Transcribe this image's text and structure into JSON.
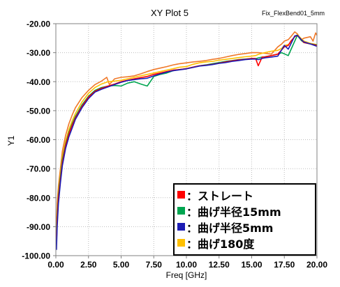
{
  "chart_data": {
    "type": "line",
    "title": "XY Plot 5",
    "subtitle": "Fix_FlexBend01_5mm",
    "xlabel": "Freq [GHz]",
    "ylabel": "Y1",
    "xlim": [
      0,
      20
    ],
    "ylim": [
      -100,
      -20
    ],
    "xticks": [
      "0.00",
      "2.50",
      "5.00",
      "7.50",
      "10.00",
      "12.50",
      "15.00",
      "17.50",
      "20.00"
    ],
    "yticks": [
      "-20.00",
      "-30.00",
      "-40.00",
      "-50.00",
      "-60.00",
      "-70.00",
      "-80.00",
      "-90.00",
      "-100.00"
    ],
    "grid": true,
    "legend_position": "bottom-right",
    "series": [
      {
        "name": "：ストレート",
        "color": "#ff0000",
        "x": [
          0.05,
          0.1,
          0.2,
          0.35,
          0.5,
          0.75,
          1,
          1.25,
          1.5,
          2,
          2.5,
          3,
          3.5,
          4,
          4.5,
          5,
          5.5,
          6,
          6.5,
          7,
          7.5,
          8,
          8.5,
          9,
          9.5,
          10,
          10.5,
          11,
          11.5,
          12,
          12.5,
          13,
          13.5,
          14,
          14.5,
          15,
          15.3,
          15.5,
          15.8,
          16,
          16.5,
          17,
          17.3,
          17.5,
          17.8,
          18,
          18.3,
          18.5,
          18.8,
          19,
          19.5,
          20
        ],
        "y": [
          -96,
          -88,
          -80,
          -74,
          -68,
          -62,
          -58,
          -55,
          -52.5,
          -48.5,
          -45.3,
          -43.3,
          -42.3,
          -41.5,
          -40.8,
          -40,
          -39.5,
          -39,
          -38.6,
          -38.2,
          -37.5,
          -37,
          -36.5,
          -36,
          -35.8,
          -35.5,
          -35,
          -34.5,
          -34.3,
          -34,
          -33.6,
          -33.2,
          -32.8,
          -32.5,
          -32.3,
          -32,
          -32,
          -34.5,
          -31.5,
          -31.5,
          -31,
          -30.5,
          -29,
          -28,
          -27.5,
          -26,
          -24.5,
          -24,
          -25.5,
          -26.5,
          -27,
          -27.5
        ]
      },
      {
        "name": "：曲げ半径15mm",
        "color": "#00a550",
        "x": [
          0.05,
          0.1,
          0.2,
          0.35,
          0.5,
          0.75,
          1,
          1.25,
          1.5,
          2,
          2.5,
          3,
          3.5,
          4,
          4.5,
          5,
          5.5,
          6,
          6.5,
          7,
          7.5,
          8,
          8.5,
          9,
          9.5,
          10,
          10.5,
          11,
          11.5,
          12,
          12.5,
          13,
          13.5,
          14,
          14.5,
          15,
          15.3,
          15.5,
          15.8,
          16,
          16.5,
          17,
          17.3,
          17.5,
          17.8,
          18,
          18.3,
          18.5,
          18.8,
          19,
          19.5,
          20
        ],
        "y": [
          -95,
          -87,
          -79,
          -73,
          -67,
          -61.5,
          -57.5,
          -54.5,
          -52,
          -48,
          -45,
          -43,
          -42,
          -41.5,
          -41.3,
          -41.5,
          -40.5,
          -40,
          -40.8,
          -41.5,
          -38.2,
          -37.5,
          -37,
          -36.2,
          -35.8,
          -35.5,
          -35,
          -34.5,
          -34.2,
          -33.8,
          -33.4,
          -33,
          -32.7,
          -32.4,
          -32.2,
          -32,
          -32.1,
          -31.8,
          -31.5,
          -31.4,
          -31,
          -30.5,
          -30,
          -30.4,
          -31,
          -29,
          -26,
          -24,
          -25.8,
          -26.5,
          -27,
          -27.3
        ]
      },
      {
        "name": "：曲げ半径5mm",
        "color": "#1c1cb4",
        "x": [
          0.05,
          0.1,
          0.2,
          0.35,
          0.5,
          0.75,
          1,
          1.25,
          1.5,
          2,
          2.5,
          3,
          3.5,
          4,
          4.5,
          5,
          5.5,
          6,
          6.5,
          7,
          7.5,
          8,
          8.5,
          9,
          9.5,
          10,
          10.5,
          11,
          11.5,
          12,
          12.5,
          13,
          13.5,
          14,
          14.5,
          15,
          15.3,
          15.5,
          15.8,
          16,
          16.5,
          17,
          17.3,
          17.5,
          17.8,
          18,
          18.3,
          18.5,
          18.8,
          19,
          19.5,
          20
        ],
        "y": [
          -98,
          -90,
          -82,
          -75,
          -69,
          -63,
          -59,
          -56,
          -53,
          -49,
          -45.8,
          -43.6,
          -42.6,
          -41.8,
          -41,
          -40.2,
          -39.6,
          -39.3,
          -39,
          -38.8,
          -38,
          -37.3,
          -36.7,
          -36.2,
          -35.9,
          -35.6,
          -35.1,
          -34.6,
          -34.4,
          -34.1,
          -33.7,
          -33.4,
          -33,
          -32.7,
          -32.4,
          -32.2,
          -32.2,
          -32.4,
          -32,
          -31.8,
          -31.5,
          -31.2,
          -29,
          -27.5,
          -28.8,
          -27,
          -24.2,
          -24,
          -25.5,
          -26.3,
          -27,
          -27.8
        ]
      },
      {
        "name": "：曲げ180度",
        "color": "#ffc000",
        "x": [
          0.05,
          0.1,
          0.2,
          0.35,
          0.5,
          0.75,
          1,
          1.25,
          1.5,
          2,
          2.5,
          3,
          3.5,
          4,
          4.5,
          5,
          5.5,
          6,
          6.5,
          7,
          7.5,
          8,
          8.5,
          9,
          9.5,
          10,
          10.5,
          11,
          11.5,
          12,
          12.5,
          13,
          13.5,
          14,
          14.5,
          15,
          15.3,
          15.5,
          15.8,
          16,
          16.5,
          17,
          17.3,
          17.5,
          17.8,
          18,
          18.3,
          18.5,
          18.8,
          19,
          19.5,
          20
        ],
        "y": [
          -94,
          -86,
          -78,
          -72,
          -66,
          -60.5,
          -56.5,
          -53.5,
          -51,
          -47,
          -44,
          -42,
          -40.8,
          -40,
          -39.8,
          -39.5,
          -39,
          -38.5,
          -38,
          -37.5,
          -37,
          -36.5,
          -36,
          -35.5,
          -35,
          -34.8,
          -34,
          -33.5,
          -33.2,
          -33,
          -32.6,
          -32.3,
          -32,
          -31.7,
          -31.4,
          -31.2,
          -31,
          -30.6,
          -30.2,
          -30,
          -29.5,
          -29.2,
          -28.5,
          -27.5,
          -27.2,
          -26.5,
          -24.5,
          -23.8,
          -25.2,
          -26,
          -26.8,
          -27.2
        ]
      },
      {
        "name": "",
        "color": "#f07828",
        "x": [
          0.05,
          0.1,
          0.2,
          0.35,
          0.5,
          0.75,
          1,
          1.25,
          1.5,
          2,
          2.5,
          3,
          3.5,
          3.9,
          4.1,
          4.3,
          4.5,
          5,
          5.5,
          6,
          6.5,
          7,
          7.5,
          8,
          8.5,
          9,
          9.5,
          10,
          10.5,
          11,
          11.5,
          12,
          12.5,
          13,
          13.5,
          14,
          14.5,
          15,
          15.5,
          16,
          16.5,
          17,
          17.3,
          17.5,
          17.8,
          18,
          18.3,
          18.5,
          18.8,
          19,
          19.5,
          19.7,
          19.9,
          20
        ],
        "y": [
          -90,
          -82,
          -76,
          -70,
          -64,
          -58.5,
          -54.5,
          -51.5,
          -49,
          -45.5,
          -43,
          -41,
          -39.8,
          -38.5,
          -41,
          -40,
          -39,
          -38.5,
          -38.3,
          -38,
          -37.3,
          -36.5,
          -35.8,
          -35.3,
          -34.8,
          -34.2,
          -33.8,
          -33.5,
          -33.2,
          -33,
          -32.7,
          -32.3,
          -32,
          -31.5,
          -31,
          -30.6,
          -30.3,
          -30,
          -30,
          -30.2,
          -30.5,
          -28,
          -27,
          -26,
          -25.5,
          -24.5,
          -22.8,
          -23.5,
          -25.5,
          -25,
          -24.5,
          -26,
          -23.2,
          -24
        ]
      }
    ]
  }
}
